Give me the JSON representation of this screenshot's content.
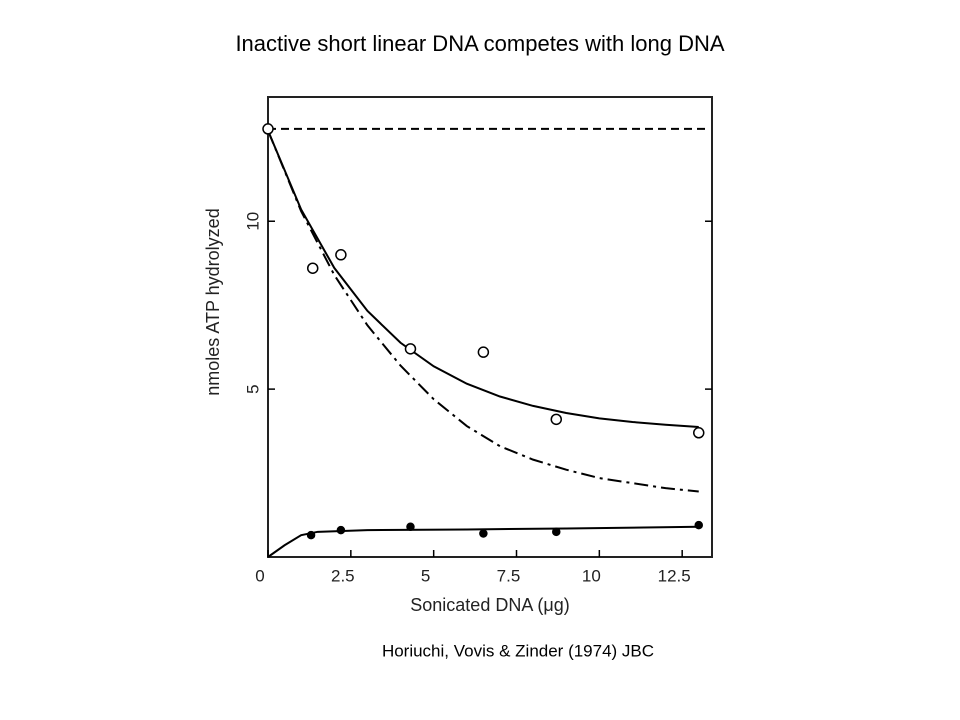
{
  "chart_data": {
    "type": "scatter",
    "title": "Inactive short linear DNA competes with long DNA",
    "x_label": "Sonicated DNA (μg)",
    "y_label": "nmoles ATP hydrolyzed",
    "source": "Horiuchi, Vovis & Zinder (1974) JBC",
    "xlim": [
      0,
      13.4
    ],
    "ylim": [
      0,
      13.7
    ],
    "xticks": [
      0,
      2.5,
      5,
      7.5,
      10,
      12.5
    ],
    "yticks": [
      5,
      10
    ],
    "color": "#000000",
    "series": [
      {
        "marker": "open",
        "x": [
          0,
          1.35,
          2.2,
          4.3,
          6.5,
          8.7,
          13.0
        ],
        "values": [
          12.75,
          8.6,
          9.0,
          6.2,
          6.1,
          4.1,
          3.7
        ]
      },
      {
        "marker": "filled",
        "x": [
          1.3,
          2.2,
          4.3,
          6.5,
          8.7,
          13.0
        ],
        "values": [
          0.65,
          0.8,
          0.9,
          0.7,
          0.75,
          0.95
        ]
      }
    ],
    "lines": [
      {
        "style": "dashed",
        "x": [
          0,
          13.3
        ],
        "values": [
          12.75,
          12.75
        ]
      },
      {
        "style": "solid",
        "x": [
          0,
          1,
          2,
          3,
          4,
          5,
          6,
          7,
          8,
          9,
          10,
          11,
          12,
          13
        ],
        "values": [
          12.7,
          10.35,
          8.61,
          7.33,
          6.38,
          5.68,
          5.16,
          4.78,
          4.5,
          4.29,
          4.13,
          4.02,
          3.94,
          3.87
        ]
      },
      {
        "style": "dashdot",
        "x": [
          0,
          1,
          2,
          3,
          4,
          5,
          6,
          7,
          8,
          9,
          10,
          11,
          12,
          13
        ],
        "values": [
          12.7,
          10.3,
          8.4,
          6.9,
          5.7,
          4.7,
          3.9,
          3.3,
          2.9,
          2.6,
          2.35,
          2.2,
          2.05,
          1.95
        ]
      },
      {
        "style": "solid",
        "x": [
          0,
          0.5,
          1,
          1.5,
          3,
          6,
          9,
          13
        ],
        "values": [
          0,
          0.35,
          0.65,
          0.75,
          0.8,
          0.82,
          0.85,
          0.9
        ]
      }
    ]
  }
}
